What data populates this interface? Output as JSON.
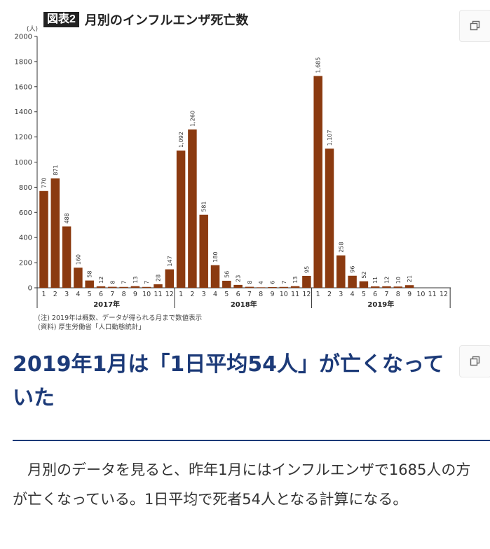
{
  "chart": {
    "badge": "図表2",
    "title": "月別のインフルエンザ死亡数",
    "unit": "(人)",
    "notes": [
      "(注) 2019年は概数、データが得られる月まで数値表示",
      "(資料) 厚生労働省「人口動態統計」"
    ]
  },
  "chart_data": {
    "type": "bar",
    "title": "月別のインフルエンザ死亡数",
    "ylabel": "(人)",
    "xlabel": "",
    "ylim": [
      0,
      2000
    ],
    "y_ticks": [
      0,
      200,
      400,
      600,
      800,
      1000,
      1200,
      1400,
      1600,
      1800,
      2000
    ],
    "grid": false,
    "bar_color": "#8b3a10",
    "groups": [
      {
        "year": "2017年",
        "months": [
          "1",
          "2",
          "3",
          "4",
          "5",
          "6",
          "7",
          "8",
          "9",
          "10",
          "11",
          "12"
        ],
        "values": [
          770,
          871,
          488,
          160,
          58,
          12,
          8,
          7,
          13,
          7,
          28,
          147
        ],
        "labels": [
          "770",
          "871",
          "488",
          "160",
          "58",
          "12",
          "8",
          "7",
          "13",
          "7",
          "28",
          "147"
        ]
      },
      {
        "year": "2018年",
        "months": [
          "1",
          "2",
          "3",
          "4",
          "5",
          "6",
          "7",
          "8",
          "9",
          "10",
          "11",
          "12"
        ],
        "values": [
          1092,
          1260,
          581,
          180,
          56,
          23,
          8,
          4,
          6,
          7,
          13,
          95
        ],
        "labels": [
          "1,092",
          "1,260",
          "581",
          "180",
          "56",
          "23",
          "8",
          "4",
          "6",
          "7",
          "13",
          "95"
        ]
      },
      {
        "year": "2019年",
        "months": [
          "1",
          "2",
          "3",
          "4",
          "5",
          "6",
          "7",
          "8",
          "9",
          "10",
          "11",
          "12"
        ],
        "values": [
          1685,
          1107,
          258,
          96,
          52,
          11,
          12,
          10,
          21,
          null,
          null,
          null
        ],
        "labels": [
          "1,685",
          "1,107",
          "258",
          "96",
          "52",
          "11",
          "12",
          "10",
          "21",
          "",
          "",
          ""
        ]
      }
    ]
  },
  "icons": {
    "copy_icon_1": "copy-icon",
    "copy_icon_2": "copy-icon"
  },
  "article": {
    "headline": "2019年1月は「1日平均54人」が亡くなっていた",
    "body": "月別のデータを見ると、昨年1月にはインフルエンザで1685人の方が亡くなっている。1日平均で死者54人となる計算になる。",
    "accent_color": "#1c3a78"
  }
}
